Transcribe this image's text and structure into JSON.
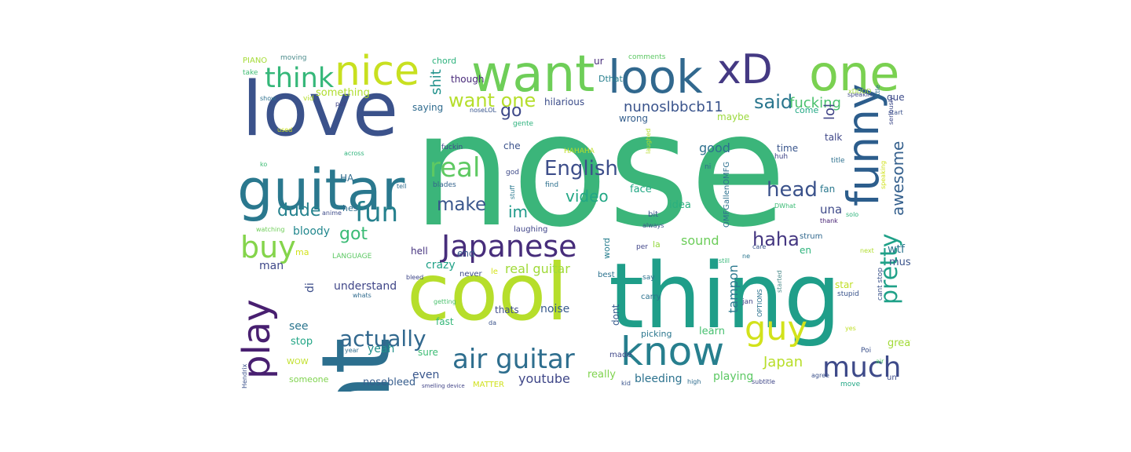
{
  "wordcloud": {
    "words": [
      {
        "text": "nose",
        "color": "#3bb57a"
      },
      {
        "text": "nt",
        "color": "#2c6f8e"
      },
      {
        "text": "thing",
        "color": "#1f9e89"
      },
      {
        "text": "cool",
        "color": "#b6de2b"
      },
      {
        "text": "love",
        "color": "#3b528b"
      },
      {
        "text": "guitar",
        "color": "#2a788e"
      },
      {
        "text": "want",
        "color": "#6ece58"
      },
      {
        "text": "look",
        "color": "#31688e"
      },
      {
        "text": "xD",
        "color": "#443983"
      },
      {
        "text": "one",
        "color": "#7ad151"
      },
      {
        "text": "nice",
        "color": "#c8e020"
      },
      {
        "text": "think",
        "color": "#35b779"
      },
      {
        "text": "funny",
        "color": "#2c5d8c"
      },
      {
        "text": "play",
        "color": "#481f70"
      },
      {
        "text": "know",
        "color": "#277f8e"
      },
      {
        "text": "guy",
        "color": "#d2e21b"
      },
      {
        "text": "Japanese",
        "color": "#472d7b"
      },
      {
        "text": "air guitar",
        "color": "#2e6e8e"
      },
      {
        "text": "much",
        "color": "#3e4a89"
      },
      {
        "text": "pretty",
        "color": "#1fa188"
      },
      {
        "text": "actually",
        "color": "#31688e"
      },
      {
        "text": "English",
        "color": "#3d4e8a"
      },
      {
        "text": "real",
        "color": "#5ec962"
      },
      {
        "text": "buy",
        "color": "#84d44b"
      },
      {
        "text": "fun",
        "color": "#26818e"
      },
      {
        "text": "head",
        "color": "#3b528b"
      },
      {
        "text": "haha",
        "color": "#453781"
      },
      {
        "text": "awesome",
        "color": "#35608d"
      },
      {
        "text": "want one",
        "color": "#b5de2b"
      },
      {
        "text": "make",
        "color": "#39568c"
      },
      {
        "text": "video",
        "color": "#22a785"
      },
      {
        "text": "said",
        "color": "#2a768e"
      },
      {
        "text": "go",
        "color": "#3e4989"
      },
      {
        "text": "dude",
        "color": "#26828e"
      },
      {
        "text": "got",
        "color": "#3bbb75"
      },
      {
        "text": "im",
        "color": "#1f9a8a"
      },
      {
        "text": "nunoslbbcb11",
        "color": "#3a548c"
      },
      {
        "text": "fucking",
        "color": "#4ac16d"
      },
      {
        "text": "lol",
        "color": "#414487"
      },
      {
        "text": "shit",
        "color": "#20928c"
      },
      {
        "text": "good",
        "color": "#2d708e"
      },
      {
        "text": "Japan",
        "color": "#b8de29"
      },
      {
        "text": "real guitar",
        "color": "#a0da39"
      },
      {
        "text": "sound",
        "color": "#6ccd5a"
      },
      {
        "text": "tampon",
        "color": "#2a788e"
      },
      {
        "text": "youtube",
        "color": "#3f4788"
      },
      {
        "text": "understand",
        "color": "#404688"
      },
      {
        "text": "yeah",
        "color": "#21918c"
      },
      {
        "text": "noise",
        "color": "#375a8c"
      },
      {
        "text": "crazy",
        "color": "#1fa187"
      },
      {
        "text": "see",
        "color": "#2b758e"
      },
      {
        "text": "stop",
        "color": "#21a585"
      },
      {
        "text": "bleeding",
        "color": "#2c728e"
      },
      {
        "text": "even",
        "color": "#39568c"
      },
      {
        "text": "playing",
        "color": "#5cc863"
      },
      {
        "text": "nosebleed",
        "color": "#365d8d"
      },
      {
        "text": "really",
        "color": "#7fd34e"
      },
      {
        "text": "learn",
        "color": "#46c06f"
      },
      {
        "text": "great",
        "color": "#a2da37"
      },
      {
        "text": "una",
        "color": "#3e4a89"
      },
      {
        "text": "wtf",
        "color": "#2b748e"
      },
      {
        "text": "must",
        "color": "#3a538b"
      },
      {
        "text": "bloody",
        "color": "#23888e"
      },
      {
        "text": "man",
        "color": "#3f4889"
      },
      {
        "text": "idea",
        "color": "#2ab07f"
      },
      {
        "text": "face",
        "color": "#22a884"
      },
      {
        "text": "hilarious",
        "color": "#3d4e8a"
      },
      {
        "text": "saying",
        "color": "#2f6b8e"
      },
      {
        "text": "something",
        "color": "#b0dd2f"
      },
      {
        "text": "though",
        "color": "#482979"
      },
      {
        "text": "wrong",
        "color": "#355f8d"
      },
      {
        "text": "maybe",
        "color": "#9bd93c"
      },
      {
        "text": "time",
        "color": "#39558c"
      },
      {
        "text": "talk",
        "color": "#3f4788"
      },
      {
        "text": "fan",
        "color": "#2a788e"
      },
      {
        "text": "que",
        "color": "#3e4c8a"
      },
      {
        "text": "come",
        "color": "#22a884"
      },
      {
        "text": "ur",
        "color": "#472c7a"
      },
      {
        "text": "chord",
        "color": "#2db27d"
      },
      {
        "text": "Dthat",
        "color": "#277f8e"
      },
      {
        "text": "comments",
        "color": "#5cc863"
      },
      {
        "text": "PIANO",
        "color": "#a5db36"
      },
      {
        "text": "moving",
        "color": "#4c8c8c"
      },
      {
        "text": "take",
        "color": "#3fbc73"
      },
      {
        "text": "HA",
        "color": "#2f6c8e"
      },
      {
        "text": "hes",
        "color": "#2e6d8e"
      },
      {
        "text": "sure",
        "color": "#3dbc74"
      },
      {
        "text": "carry",
        "color": "#2c728e"
      },
      {
        "text": "picking",
        "color": "#2a768e"
      },
      {
        "text": "made",
        "color": "#3f4889"
      },
      {
        "text": "stupid",
        "color": "#3a548c"
      },
      {
        "text": "star",
        "color": "#c0df25"
      },
      {
        "text": "WOW",
        "color": "#bfdf25"
      },
      {
        "text": "someone",
        "color": "#7fd34e"
      },
      {
        "text": "MATTER",
        "color": "#d0e11c"
      },
      {
        "text": "fast",
        "color": "#35b779"
      },
      {
        "text": "di",
        "color": "#3d4e8a"
      },
      {
        "text": "word",
        "color": "#277e8e"
      },
      {
        "text": "dont",
        "color": "#375a8c"
      },
      {
        "text": "end",
        "color": "#38588c"
      },
      {
        "text": "laughing",
        "color": "#404588"
      },
      {
        "text": "hell",
        "color": "#46337f"
      },
      {
        "text": "never",
        "color": "#3e4c8a"
      },
      {
        "text": "best",
        "color": "#2c728e"
      },
      {
        "text": "le",
        "color": "#d5e21a"
      },
      {
        "text": "ma",
        "color": "#d2e21b"
      },
      {
        "text": "en",
        "color": "#2eb37c"
      },
      {
        "text": "la",
        "color": "#94d840"
      },
      {
        "text": "che",
        "color": "#3b528b"
      },
      {
        "text": "gente",
        "color": "#2db27d"
      },
      {
        "text": "fuckin",
        "color": "#3f4889"
      },
      {
        "text": "god",
        "color": "#3e4a89"
      },
      {
        "text": "blades",
        "color": "#33638d"
      },
      {
        "text": "stuff",
        "color": "#2a788e"
      },
      {
        "text": "find",
        "color": "#2d708e"
      },
      {
        "text": "laughed",
        "color": "#b5de2b"
      },
      {
        "text": "ni",
        "color": "#31688e"
      },
      {
        "text": "huh",
        "color": "#404688"
      },
      {
        "text": "title",
        "color": "#2d708e"
      },
      {
        "text": "HAHAHA",
        "color": "#bddf26"
      },
      {
        "text": "bit",
        "color": "#3a538b"
      },
      {
        "text": "always",
        "color": "#3b518b"
      },
      {
        "text": "care",
        "color": "#3a548c"
      },
      {
        "text": "thank",
        "color": "#482374"
      },
      {
        "text": "DWhat",
        "color": "#3bbb75"
      },
      {
        "text": "solo",
        "color": "#2fb47c"
      },
      {
        "text": "OMFGallenOMFG",
        "color": "#2d708e"
      },
      {
        "text": "OPTIONS",
        "color": "#2c728e"
      },
      {
        "text": "jan",
        "color": "#414487"
      },
      {
        "text": "ne",
        "color": "#2a768e"
      },
      {
        "text": "still",
        "color": "#35b779"
      },
      {
        "text": "started",
        "color": "#4e8c8c"
      },
      {
        "text": "say",
        "color": "#2d708e"
      },
      {
        "text": "per",
        "color": "#404588"
      },
      {
        "text": "next",
        "color": "#b0dd2f"
      },
      {
        "text": "cant stop",
        "color": "#3a538b"
      },
      {
        "text": "yes",
        "color": "#bfdf25"
      },
      {
        "text": "Poi",
        "color": "#3b518b"
      },
      {
        "text": "air",
        "color": "#4dc36b"
      },
      {
        "text": "un",
        "color": "#3e4c8a"
      },
      {
        "text": "move",
        "color": "#22a785"
      },
      {
        "text": "agree",
        "color": "#3b518b"
      },
      {
        "text": "subtitle",
        "color": "#3f4788"
      },
      {
        "text": "high",
        "color": "#2f6c8e"
      },
      {
        "text": "kid",
        "color": "#3a548c"
      },
      {
        "text": "da",
        "color": "#3a538b"
      },
      {
        "text": "getting",
        "color": "#4ac16d"
      },
      {
        "text": "whats",
        "color": "#2f6b8e"
      },
      {
        "text": "bleed",
        "color": "#3f4788"
      },
      {
        "text": "year",
        "color": "#2f6c8e"
      },
      {
        "text": "Hendrix",
        "color": "#3b518b"
      },
      {
        "text": "smelling device",
        "color": "#414487"
      },
      {
        "text": "LANGUAGE",
        "color": "#5cc863"
      },
      {
        "text": "watching",
        "color": "#6ece58"
      },
      {
        "text": "anime",
        "color": "#3e4c8a"
      },
      {
        "text": "across",
        "color": "#2fb47c"
      },
      {
        "text": "ko",
        "color": "#3dbc74"
      },
      {
        "text": "used",
        "color": "#c8e020"
      },
      {
        "text": "vid",
        "color": "#b5de2b"
      },
      {
        "text": "show",
        "color": "#2d708e"
      },
      {
        "text": "put",
        "color": "#404588"
      },
      {
        "text": "noseLOL",
        "color": "#39558c"
      },
      {
        "text": "speakin",
        "color": "#3e4989"
      },
      {
        "text": "little",
        "color": "#2d708e"
      },
      {
        "text": "xDDDD",
        "color": "#a0da39"
      },
      {
        "text": "start",
        "color": "#3b528b"
      },
      {
        "text": "seriously",
        "color": "#3e4a89"
      },
      {
        "text": "speaking",
        "color": "#d0e11c"
      },
      {
        "text": "tell",
        "color": "#2e6d8e"
      },
      {
        "text": "strum",
        "color": "#31688e"
      },
      {
        "text": "thats",
        "color": "#3e4c8a"
      }
    ]
  }
}
